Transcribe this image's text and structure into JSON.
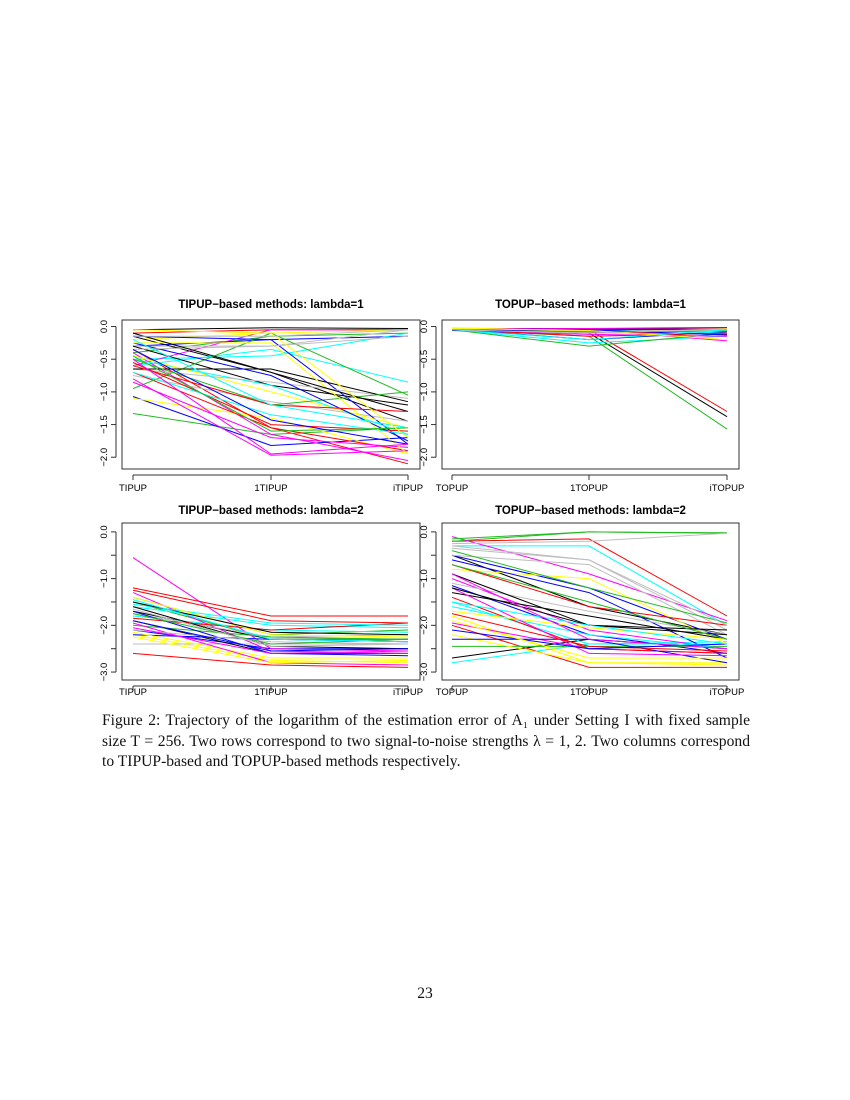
{
  "chart_data": [
    {
      "type": "line",
      "title": "TIPUP−based methods: lambda=1",
      "categories": [
        "TIPUP",
        "1TIPUP",
        "iTIPUP"
      ],
      "yticks": [
        "0.0",
        "−0.5",
        "−1.0",
        "−1.5",
        "−2.0"
      ],
      "ytick_values": [
        0,
        -0.5,
        -1,
        -1.5,
        -2
      ],
      "ylim": [
        -2.18,
        0.1
      ],
      "colors": [
        "#000000",
        "#ff0000",
        "#22bb22",
        "#0000ff",
        "#00ffff",
        "#ff00ff",
        "#ffff00",
        "#bebebe"
      ],
      "series": [
        [
          -0.05,
          -0.02,
          -0.03
        ],
        [
          -0.1,
          -0.05,
          -0.05
        ],
        [
          -0.4,
          -0.15,
          -0.1
        ],
        [
          -0.3,
          -0.2,
          -0.15
        ],
        [
          -0.5,
          -0.45,
          -0.1
        ],
        [
          -0.6,
          -0.05,
          -0.05
        ],
        [
          -0.2,
          -0.1,
          -0.05
        ],
        [
          -0.3,
          -0.3,
          -0.05
        ],
        [
          -0.15,
          -0.7,
          -1.45
        ],
        [
          -0.35,
          -1.55,
          -2.1
        ],
        [
          -1.33,
          -1.65,
          -1.55
        ],
        [
          -1.07,
          -1.82,
          -1.7
        ],
        [
          -0.6,
          -0.35,
          -0.85
        ],
        [
          -0.4,
          -1.65,
          -2.05
        ],
        [
          -1.1,
          -1.4,
          -1.95
        ],
        [
          -0.75,
          -1.15,
          -1.45
        ],
        [
          -0.3,
          -0.9,
          -1.2
        ],
        [
          -0.7,
          -1.55,
          -1.9
        ],
        [
          -0.95,
          -0.1,
          -1.05
        ],
        [
          -0.15,
          -0.2,
          -1.8
        ],
        [
          -0.5,
          -0.9,
          -1.65
        ],
        [
          -0.8,
          -1.97,
          -1.9
        ],
        [
          -0.45,
          -1.0,
          -1.55
        ],
        [
          -0.65,
          -0.85,
          -1.1
        ],
        [
          -0.65,
          -0.65,
          -1.15
        ],
        [
          -0.55,
          -1.5,
          -1.6
        ],
        [
          -0.5,
          -1.2,
          -1.0
        ],
        [
          -0.25,
          -0.75,
          -1.75
        ],
        [
          -0.7,
          -1.35,
          -1.65
        ],
        [
          -0.85,
          -1.7,
          -1.85
        ],
        [
          -0.25,
          -0.25,
          -1.95
        ],
        [
          -0.35,
          -0.3,
          -0.15
        ],
        [
          -0.1,
          -0.7,
          -1.3
        ],
        [
          -0.6,
          -1.2,
          -1.3
        ],
        [
          -0.45,
          -1.6,
          -1.55
        ],
        [
          -0.35,
          -1.43,
          -1.8
        ],
        [
          -0.2,
          -1.2,
          -1.55
        ],
        [
          -0.5,
          -1.95,
          -1.8
        ],
        [
          -0.05,
          -0.1,
          -1.7
        ],
        [
          -0.15,
          -0.15,
          -0.05
        ]
      ]
    },
    {
      "type": "line",
      "title": "TOPUP−based methods: lambda=1",
      "categories": [
        "TOPUP",
        "1TOPUP",
        "iTOPUP"
      ],
      "yticks": [
        "0.0",
        "−0.5",
        "−1.0",
        "−1.5",
        "−2.0"
      ],
      "ytick_values": [
        0,
        -0.5,
        -1,
        -1.5,
        -2
      ],
      "ylim": [
        -2.18,
        0.1
      ],
      "colors": [
        "#000000",
        "#ff0000",
        "#22bb22",
        "#0000ff",
        "#00ffff",
        "#ff00ff",
        "#ffff00",
        "#bebebe"
      ],
      "series": [
        [
          -0.05,
          -0.1,
          -1.38
        ],
        [
          -0.05,
          -0.05,
          -1.3
        ],
        [
          -0.05,
          -0.15,
          -1.57
        ],
        [
          -0.03,
          -0.05,
          -0.05
        ],
        [
          -0.05,
          -0.25,
          -0.15
        ],
        [
          -0.04,
          -0.05,
          -0.22
        ],
        [
          -0.05,
          -0.06,
          -0.05
        ],
        [
          -0.04,
          -0.1,
          -0.1
        ],
        [
          -0.03,
          -0.03,
          -0.02
        ],
        [
          -0.06,
          -0.08,
          -0.12
        ],
        [
          -0.05,
          -0.3,
          -0.1
        ],
        [
          -0.04,
          -0.2,
          -0.08
        ],
        [
          -0.05,
          -0.04,
          -0.1
        ],
        [
          -0.06,
          -0.12,
          -0.15
        ],
        [
          -0.02,
          -0.05,
          -0.03
        ],
        [
          -0.03,
          -0.07,
          -0.06
        ],
        [
          -0.05,
          -0.05,
          -0.04
        ],
        [
          -0.04,
          -0.15,
          -0.1
        ],
        [
          -0.05,
          -0.08,
          -0.07
        ],
        [
          -0.06,
          -0.05,
          -0.13
        ],
        [
          -0.05,
          -0.2,
          -0.05
        ],
        [
          -0.04,
          -0.03,
          -0.04
        ],
        [
          -0.03,
          -0.06,
          -0.2
        ],
        [
          -0.05,
          -0.1,
          -0.04
        ]
      ]
    },
    {
      "type": "line",
      "title": "TIPUP−based methods: lambda=2",
      "categories": [
        "TIPUP",
        "1TIPUP",
        "iTIPUP"
      ],
      "yticks": [
        "0.0",
        "",
        "−1.0",
        "",
        "−2.0",
        "",
        "−3.0"
      ],
      "ytick_values": [
        0,
        -0.5,
        -1,
        -1.5,
        -2,
        -2.5,
        -3
      ],
      "ylim": [
        -3.17,
        0.19
      ],
      "colors": [
        "#000000",
        "#ff0000",
        "#22bb22",
        "#0000ff",
        "#00ffff",
        "#ff00ff",
        "#ffff00",
        "#bebebe"
      ],
      "series": [
        [
          -1.7,
          -2.3,
          -2.3
        ],
        [
          -2.6,
          -2.85,
          -2.9
        ],
        [
          -1.4,
          -2.2,
          -2.1
        ],
        [
          -2.1,
          -2.5,
          -2.5
        ],
        [
          -1.8,
          -2.1,
          -2.15
        ],
        [
          -0.55,
          -2.5,
          -2.55
        ],
        [
          -2.2,
          -2.75,
          -2.8
        ],
        [
          -2.4,
          -2.4,
          -2.4
        ],
        [
          -1.9,
          -2.6,
          -2.6
        ],
        [
          -1.2,
          -1.8,
          -1.8
        ],
        [
          -1.5,
          -2.3,
          -2.3
        ],
        [
          -2.2,
          -2.3,
          -2.35
        ],
        [
          -1.6,
          -2.0,
          -2.05
        ],
        [
          -1.3,
          -2.55,
          -2.6
        ],
        [
          -2.15,
          -2.7,
          -2.7
        ],
        [
          -1.75,
          -2.25,
          -2.2
        ],
        [
          -1.6,
          -2.45,
          -2.5
        ],
        [
          -1.85,
          -2.1,
          -1.95
        ],
        [
          -2.0,
          -2.25,
          -2.3
        ],
        [
          -1.7,
          -2.6,
          -2.65
        ],
        [
          -1.55,
          -1.95,
          -2.0
        ],
        [
          -1.95,
          -2.8,
          -2.85
        ],
        [
          -1.4,
          -2.2,
          -2.25
        ],
        [
          -2.1,
          -2.35,
          -2.4
        ],
        [
          -1.5,
          -2.15,
          -2.2
        ],
        [
          -1.25,
          -1.9,
          -1.95
        ],
        [
          -1.75,
          -2.4,
          -2.3
        ],
        [
          -1.9,
          -2.55,
          -2.5
        ],
        [
          -1.45,
          -2.3,
          -2.35
        ],
        [
          -2.05,
          -2.6,
          -2.55
        ],
        [
          -2.25,
          -2.8,
          -2.75
        ],
        [
          -1.65,
          -2.45,
          -2.4
        ]
      ]
    },
    {
      "type": "line",
      "title": "TOPUP−based methods: lambda=2",
      "categories": [
        "TOPUP",
        "1TOPUP",
        "iTOPUP"
      ],
      "yticks": [
        "0.0",
        "",
        "−1.0",
        "",
        "−2.0",
        "",
        "−3.0"
      ],
      "ytick_values": [
        0,
        -0.5,
        -1,
        -1.5,
        -2,
        -2.5,
        -3
      ],
      "ylim": [
        -3.17,
        0.19
      ],
      "colors": [
        "#000000",
        "#ff0000",
        "#22bb22",
        "#0000ff",
        "#00ffff",
        "#ff00ff",
        "#ffff00",
        "#bebebe"
      ],
      "series": [
        [
          -0.5,
          -1.6,
          -2.2
        ],
        [
          -0.2,
          -0.15,
          -1.8
        ],
        [
          -0.2,
          0,
          -0.03
        ],
        [
          -0.5,
          -1.2,
          -2.3
        ],
        [
          -0.3,
          -0.3,
          -2.0
        ],
        [
          -0.1,
          -0.9,
          -1.9
        ],
        [
          -1.8,
          -2.8,
          -2.8
        ],
        [
          -0.3,
          -0.6,
          -2.1
        ],
        [
          -2.7,
          -2.3,
          -2.5
        ],
        [
          -2.0,
          -2.9,
          -2.9
        ],
        [
          -0.15,
          0,
          -0.02
        ],
        [
          -1.15,
          -2.2,
          -2.6
        ],
        [
          -1.5,
          -2.4,
          -2.35
        ],
        [
          -1.0,
          -2.1,
          -2.5
        ],
        [
          -0.8,
          -1.0,
          -2.4
        ],
        [
          -0.5,
          -0.7,
          -2.2
        ],
        [
          -1.3,
          -1.8,
          -2.3
        ],
        [
          -0.7,
          -1.6,
          -2.0
        ],
        [
          -2.45,
          -2.45,
          -2.45
        ],
        [
          -0.6,
          -1.3,
          -2.7
        ],
        [
          -2.8,
          -2.4,
          -2.4
        ],
        [
          -1.95,
          -2.5,
          -2.6
        ],
        [
          -2.2,
          -2.8,
          -2.85
        ],
        [
          -1.1,
          -1.7,
          -2.2
        ],
        [
          -0.9,
          -2.0,
          -2.1
        ],
        [
          -1.4,
          -2.5,
          -2.6
        ],
        [
          -0.4,
          -1.2,
          -1.95
        ],
        [
          -2.3,
          -2.3,
          -2.8
        ],
        [
          -1.6,
          -2.2,
          -2.5
        ],
        [
          -1.2,
          -2.6,
          -2.65
        ],
        [
          -1.7,
          -2.05,
          -2.3
        ],
        [
          -0.35,
          -0.6,
          -2.0
        ],
        [
          -1.2,
          -2.0,
          -2.2
        ],
        [
          -1.75,
          -2.45,
          -2.55
        ],
        [
          -0.7,
          -1.5,
          -2.3
        ],
        [
          -2.1,
          -2.5,
          -2.4
        ],
        [
          -1.5,
          -2.0,
          -2.4
        ],
        [
          -0.9,
          -2.3,
          -2.5
        ],
        [
          -1.9,
          -2.7,
          -2.7
        ],
        [
          -0.25,
          -0.2,
          -0.03
        ]
      ]
    }
  ],
  "caption": {
    "text": "Figure 2: Trajectory of the logarithm of the estimation error of A₁ under Setting I with fixed sample size T = 256. Two rows correspond to two signal-to-noise strengths λ = 1, 2. Two columns correspond to TIPUP-based and TOPUP-based methods respectively."
  },
  "page_number": "23"
}
